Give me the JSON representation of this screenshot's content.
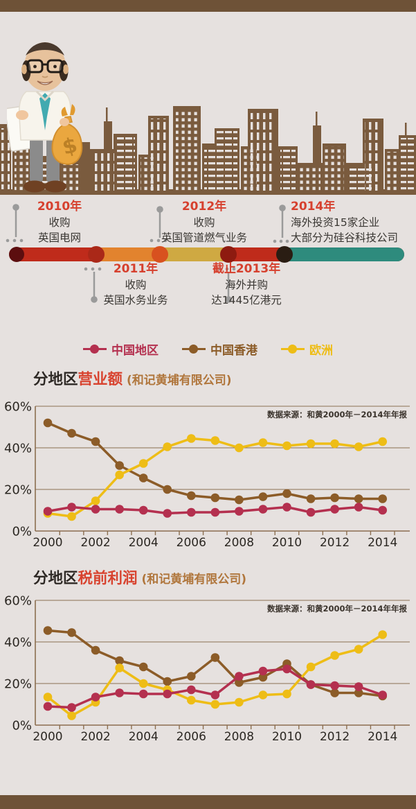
{
  "page": {
    "background": "#e6e1df",
    "band_color": "#6e5237"
  },
  "hero": {
    "moneybag_symbol": "$"
  },
  "timeline": {
    "bar": {
      "segment_colors": [
        "#bf2b1b",
        "#e2832e",
        "#cfa942",
        "#bf2b1b",
        "#2e8b7d"
      ],
      "node_colors": [
        "#5c0e0f",
        "#aa2818",
        "#d8511f",
        "#8e1b10",
        "#2a1d13"
      ],
      "stem_color": "#9a9a9a"
    },
    "year_color": "#d6402e",
    "events": [
      {
        "year": "2010年",
        "lines": [
          "收购",
          "英国电网"
        ],
        "position": "above"
      },
      {
        "year": "2011年",
        "lines": [
          "收购",
          "英国水务业务"
        ],
        "position": "below"
      },
      {
        "year": "2012年",
        "lines": [
          "收购",
          "英国管道燃气业务"
        ],
        "position": "above"
      },
      {
        "year": "截止2013年",
        "lines": [
          "海外并购",
          "达1445亿港元"
        ],
        "position": "below"
      },
      {
        "year": "2014年",
        "lines": [
          "海外投资15家企业",
          "大部分为硅谷科技公司"
        ],
        "position": "above"
      }
    ]
  },
  "legend": {
    "items": [
      {
        "label": "中国地区",
        "color": "#b4304f"
      },
      {
        "label": "中国香港",
        "color": "#8c5c28"
      },
      {
        "label": "欧洲",
        "color": "#eebd16"
      }
    ]
  },
  "chart_data": [
    {
      "type": "line",
      "title_prefix": "分地区",
      "title_main": "营业额",
      "title_suffix": " (和记黄埔有限公司)",
      "source": "数据来源：和黄2000年－2014年年报",
      "x": [
        2000,
        2001,
        2002,
        2003,
        2004,
        2005,
        2006,
        2007,
        2008,
        2009,
        2010,
        2011,
        2012,
        2013,
        2014
      ],
      "x_tick_labels": [
        "2000",
        "2002",
        "2004",
        "2006",
        "2008",
        "2010",
        "2012",
        "2014"
      ],
      "ylim": [
        0,
        60
      ],
      "ytick_values": [
        0,
        20,
        40,
        60
      ],
      "ytick_labels": [
        "0%",
        "20%",
        "40%",
        "60%"
      ],
      "grid": true,
      "legend_position": "top-center",
      "series": [
        {
          "name": "中国地区",
          "color": "#b4304f",
          "values": [
            9.5,
            11.5,
            10.5,
            10.5,
            10,
            8.5,
            9,
            9,
            9.5,
            10.5,
            11.5,
            9,
            10.5,
            11.5,
            10
          ]
        },
        {
          "name": "中国香港",
          "color": "#8c5c28",
          "values": [
            52,
            47,
            43,
            31.5,
            25.5,
            20,
            17,
            16,
            15,
            16.5,
            18,
            15.5,
            16,
            15.5,
            15.5
          ]
        },
        {
          "name": "欧洲",
          "color": "#eebd16",
          "values": [
            8.5,
            7,
            14.5,
            27,
            32.5,
            40.5,
            44.5,
            43.5,
            40,
            42.5,
            41,
            42,
            42,
            40.5,
            43
          ]
        }
      ]
    },
    {
      "type": "line",
      "title_prefix": "分地区",
      "title_main": "税前利润",
      "title_suffix": " (和记黄埔有限公司)",
      "source": "数据来源：和黄2000年－2014年年报",
      "x": [
        2000,
        2001,
        2002,
        2003,
        2004,
        2005,
        2006,
        2007,
        2008,
        2009,
        2010,
        2011,
        2012,
        2013,
        2014
      ],
      "x_tick_labels": [
        "2000",
        "2002",
        "2004",
        "2006",
        "2008",
        "2010",
        "2012",
        "2014"
      ],
      "ylim": [
        0,
        60
      ],
      "ytick_values": [
        0,
        20,
        40,
        60
      ],
      "ytick_labels": [
        "0%",
        "20%",
        "40%",
        "60%"
      ],
      "grid": true,
      "legend_position": "top-center",
      "series": [
        {
          "name": "中国地区",
          "color": "#b4304f",
          "values": [
            9,
            8.5,
            13.5,
            15.5,
            15,
            15,
            17,
            14.5,
            23.5,
            26,
            27,
            19.5,
            19,
            18.5,
            14.5
          ]
        },
        {
          "name": "中国香港",
          "color": "#8c5c28",
          "values": [
            45.5,
            44.5,
            36,
            31,
            28,
            21,
            23.5,
            32.5,
            20.5,
            23,
            29.5,
            19.5,
            15.5,
            15.5,
            14
          ]
        },
        {
          "name": "欧洲",
          "color": "#eebd16",
          "values": [
            13.5,
            4.5,
            11,
            27.5,
            20,
            17,
            12,
            10,
            11,
            14.5,
            15,
            28,
            33.5,
            36.5,
            43.5
          ]
        }
      ]
    }
  ],
  "axis_style": {
    "line_color": "#8b6e50",
    "label_color": "#2b2722",
    "source_color": "#3a332c"
  }
}
